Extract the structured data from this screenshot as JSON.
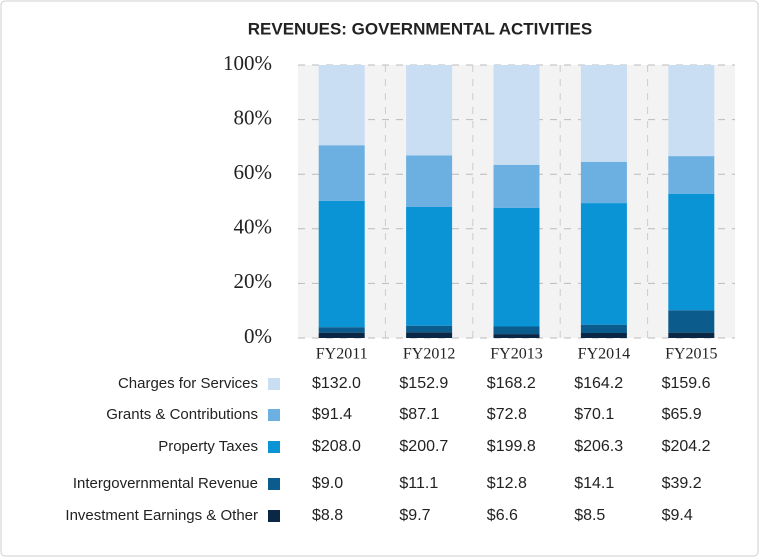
{
  "chart_data": {
    "type": "bar",
    "stacking": "percent",
    "title": "REVENUES: GOVERNMENTAL ACTIVITIES",
    "categories": [
      "FY2011",
      "FY2012",
      "FY2013",
      "FY2014",
      "FY2015"
    ],
    "series": [
      {
        "name": "Charges for Services",
        "color": "#c9ddf3",
        "values": [
          132.0,
          152.9,
          168.2,
          164.2,
          159.6
        ],
        "value_labels": [
          "$132.0",
          "$152.9",
          "$168.2",
          "$164.2",
          "$159.6"
        ]
      },
      {
        "name": "Grants & Contributions",
        "color": "#6cb0e2",
        "values": [
          91.4,
          87.1,
          72.8,
          70.1,
          65.9
        ],
        "value_labels": [
          "$91.4",
          "$87.1",
          "$72.8",
          "$70.1",
          "$65.9"
        ]
      },
      {
        "name": "Property Taxes",
        "color": "#0a94d6",
        "values": [
          208.0,
          200.7,
          199.8,
          206.3,
          204.2
        ],
        "value_labels": [
          "$208.0",
          "$200.7",
          "$199.8",
          "$206.3",
          "$204.2"
        ]
      },
      {
        "name": "Intergovernmental Revenue",
        "color": "#0b5b8c",
        "values": [
          9.0,
          11.1,
          12.8,
          14.1,
          39.2
        ],
        "value_labels": [
          "$9.0",
          "$11.1",
          "$12.8",
          "$14.1",
          "$39.2"
        ]
      },
      {
        "name": "Investment Earnings & Other",
        "color": "#0a2846",
        "values": [
          8.8,
          9.7,
          6.6,
          8.5,
          9.4
        ],
        "value_labels": [
          "$8.8",
          "$9.7",
          "$6.6",
          "$8.5",
          "$9.4"
        ]
      }
    ],
    "ylim": [
      0,
      100
    ],
    "yticks": [
      {
        "value": 0,
        "label": "0%"
      },
      {
        "value": 20,
        "label": "20%"
      },
      {
        "value": 40,
        "label": "40%"
      },
      {
        "value": 60,
        "label": "60%"
      },
      {
        "value": 80,
        "label": "80%"
      },
      {
        "value": 100,
        "label": "100%"
      }
    ],
    "grid": true
  }
}
